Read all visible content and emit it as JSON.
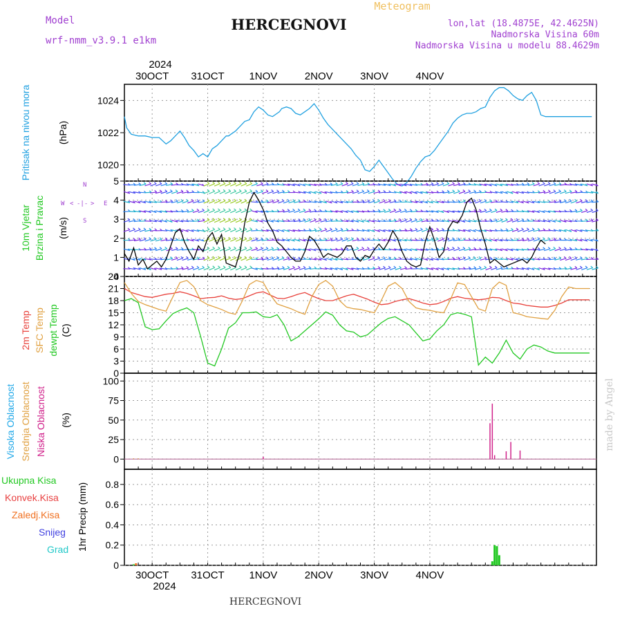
{
  "header": {
    "model_label": "Model",
    "model_name": "wrf-nmm_v3.9.1  e1km",
    "meteogram_label": "Meteogram",
    "station": "HERCEGNOVI",
    "lonlat": "lon,lat (18.4875E, 42.4625N)",
    "altitude": "Nadmorska Visina 60m",
    "model_altitude": "Nadmorska Visina u modelu 88.4629m"
  },
  "footer": {
    "station": "HERCEGNOVI",
    "watermark": "made by Angel"
  },
  "time_axis": {
    "year": "2024",
    "days": [
      "30OCT",
      "31OCT",
      "1NOV",
      "2NOV",
      "3NOV",
      "4NOV"
    ]
  },
  "colors": {
    "pressure": "#1fa0e0",
    "t2m": "#e8403a",
    "sfc": "#e0a040",
    "dew": "#22c822",
    "cloud_high": "#20a8e8",
    "cloud_mid": "#e0a040",
    "cloud_low": "#d0208a",
    "total_precip": "#22c822",
    "conv_precip": "#e84040",
    "frozen_precip": "#f07020",
    "snow": "#4040e0",
    "grad": "#20c8c8",
    "wind_speed": "#000000",
    "wind_arrows": "#7a2ce0"
  },
  "panels": {
    "pressure": {
      "label": "Pritisak na nivou mora",
      "unit": "(hPa)",
      "ticks": [
        "1020",
        "1022",
        "1024"
      ]
    },
    "wind": {
      "label_1": "10m Vjetar",
      "label_2": "Brzina i Pravac",
      "unit": "(m/s)",
      "ticks": [
        "0",
        "1",
        "2",
        "3",
        "4",
        "5"
      ],
      "compass": {
        "w": "W",
        "e": "E",
        "n": "N",
        "s": "S",
        "left": "<",
        "right": ">",
        "center": "-|-"
      }
    },
    "temp": {
      "label_t2m": "2m Temp",
      "label_sfc": "SFC Temp",
      "label_dew": "dewpt Temp",
      "unit": "(C)",
      "ticks": [
        "0",
        "3",
        "6",
        "9",
        "12",
        "15",
        "18",
        "21",
        "24"
      ]
    },
    "cloud": {
      "label_high": "Visoka Oblacnost",
      "label_mid": "Srednja Oblacnost",
      "label_low": "Niska Oblacnost",
      "unit": "(%)",
      "ticks": [
        "0",
        "25",
        "50",
        "75",
        "100"
      ]
    },
    "precip": {
      "label_total": "Ukupna Kisa",
      "label_conv": "Konvek.Kisa",
      "label_frozen": "Zaledj.Kisa",
      "label_snow": "Snijeg",
      "label_grad": "Grad",
      "unit": "1hr Precip (mm)",
      "ticks": [
        "0",
        "0.2",
        "0.4",
        "0.6",
        "0.8"
      ]
    }
  },
  "chart_data": [
    {
      "type": "line",
      "title": "",
      "ylabel": "Pritisak na nivou mora (hPa)",
      "ylim": [
        1019,
        1025
      ],
      "x_unit": "hours from 29 Oct 2024 12 UTC",
      "series": [
        {
          "name": "Pritisak na nivou mora",
          "x": [
            0,
            1,
            3,
            6,
            9,
            12,
            15,
            18,
            20,
            22,
            24,
            26,
            28,
            30,
            32,
            34,
            36,
            38,
            40,
            42,
            44,
            45,
            46,
            48,
            50,
            52,
            54,
            56,
            58,
            60,
            62,
            64,
            66,
            67,
            68,
            70,
            72,
            74,
            76,
            78,
            80,
            82,
            84,
            86,
            88,
            90,
            92,
            94,
            96,
            98,
            100,
            102,
            104,
            106,
            108,
            110,
            112,
            114,
            116,
            118,
            120,
            122,
            124,
            126,
            128,
            130,
            132,
            134,
            136,
            138,
            140,
            142,
            144,
            146,
            148,
            150,
            152,
            154,
            156,
            158,
            160,
            162,
            164,
            166,
            168,
            170,
            172,
            174,
            176,
            178,
            180,
            182,
            184,
            186,
            188,
            190,
            192,
            194,
            196,
            198,
            200,
            202
          ],
          "y": [
            1023.0,
            1022.3,
            1021.9,
            1021.8,
            1021.8,
            1021.7,
            1021.7,
            1021.3,
            1021.5,
            1021.8,
            1022.1,
            1021.7,
            1021.2,
            1020.9,
            1020.5,
            1020.7,
            1020.5,
            1021.0,
            1021.2,
            1021.5,
            1021.8,
            1021.8,
            1021.9,
            1022.1,
            1022.4,
            1022.7,
            1022.8,
            1023.3,
            1023.6,
            1023.4,
            1023.1,
            1023.0,
            1023.2,
            1023.3,
            1023.5,
            1023.6,
            1023.5,
            1023.2,
            1023.1,
            1023.3,
            1023.5,
            1023.8,
            1023.4,
            1022.9,
            1022.5,
            1022.2,
            1021.9,
            1021.6,
            1021.3,
            1021.0,
            1020.6,
            1020.3,
            1019.7,
            1019.6,
            1019.9,
            1020.3,
            1019.9,
            1019.5,
            1019.1,
            1018.8,
            1018.7,
            1018.9,
            1019.3,
            1019.8,
            1020.2,
            1020.5,
            1020.6,
            1020.9,
            1021.3,
            1021.7,
            1022.1,
            1022.6,
            1022.9,
            1023.1,
            1023.2,
            1023.2,
            1023.3,
            1023.5,
            1023.6,
            1024.2,
            1024.6,
            1024.8,
            1024.8,
            1024.6,
            1024.3,
            1024.1,
            1024.0,
            1024.3,
            1024.5,
            1024.0,
            1023.1,
            1023.0,
            1023.0,
            1023.0,
            1023.0,
            1023.0,
            1023.0,
            1023.0,
            1023.0,
            1023.0,
            1023.0,
            1023.0
          ]
        }
      ]
    },
    {
      "type": "line",
      "title": "",
      "ylabel": "10m Vjetar Brzina i Pravac (m/s)",
      "ylim": [
        0,
        5
      ],
      "x_unit": "hours from 29 Oct 2024 12 UTC",
      "series": [
        {
          "name": "Brzina",
          "x": [
            0,
            2,
            4,
            6,
            8,
            10,
            12,
            14,
            16,
            18,
            20,
            22,
            24,
            26,
            28,
            30,
            32,
            34,
            36,
            38,
            40,
            42,
            44,
            46,
            48,
            50,
            52,
            54,
            56,
            58,
            60,
            62,
            64,
            66,
            68,
            70,
            72,
            74,
            76,
            78,
            80,
            82,
            84,
            86,
            88,
            90,
            92,
            94,
            96,
            98,
            100,
            102,
            104,
            106,
            108,
            110,
            112,
            114,
            116,
            118,
            120,
            122,
            124,
            126,
            128,
            130,
            132,
            134,
            136,
            138,
            140,
            142,
            144,
            146,
            148,
            150,
            152,
            154,
            156,
            158,
            160,
            162,
            164,
            166,
            168,
            170,
            172,
            174,
            176,
            178,
            180,
            182
          ],
          "y": [
            1.2,
            0.8,
            1.5,
            0.6,
            0.9,
            0.4,
            0.6,
            0.8,
            0.5,
            0.9,
            1.6,
            2.3,
            2.5,
            1.8,
            1.3,
            0.9,
            1.6,
            1.3,
            2.0,
            2.3,
            1.7,
            2.2,
            0.7,
            0.6,
            0.5,
            1.3,
            2.8,
            3.9,
            4.4,
            4.0,
            3.5,
            2.8,
            2.4,
            1.8,
            1.6,
            1.3,
            1.0,
            0.8,
            0.8,
            1.3,
            2.1,
            1.9,
            1.5,
            1.0,
            1.2,
            1.1,
            1.0,
            1.2,
            1.6,
            1.6,
            1.0,
            0.8,
            1.1,
            1.0,
            1.4,
            1.7,
            1.4,
            1.8,
            2.4,
            2.0,
            1.3,
            0.8,
            0.6,
            0.5,
            0.6,
            1.8,
            2.6,
            1.9,
            1.0,
            1.3,
            2.5,
            2.9,
            2.8,
            3.2,
            3.9,
            4.1,
            3.5,
            2.5,
            1.7,
            0.7,
            0.9,
            0.7,
            0.5,
            0.6,
            0.7,
            0.8,
            0.9,
            0.7,
            1.0,
            1.5,
            1.9,
            1.7
          ]
        }
      ]
    },
    {
      "type": "line",
      "title": "",
      "ylabel": "Temp (C)",
      "ylim": [
        0,
        24
      ],
      "x_unit": "hours from 29 Oct 2024 12 UTC",
      "series": [
        {
          "name": "2m Temp",
          "x": [
            0,
            3,
            6,
            9,
            12,
            15,
            18,
            21,
            24,
            27,
            30,
            33,
            36,
            39,
            42,
            45,
            48,
            51,
            54,
            57,
            60,
            63,
            66,
            69,
            72,
            75,
            78,
            81,
            84,
            87,
            90,
            93,
            96,
            99,
            102,
            105,
            108,
            111,
            114,
            117,
            120,
            123,
            126,
            129,
            132,
            135,
            138,
            141,
            144,
            147,
            150,
            153,
            156,
            159,
            162,
            165,
            168,
            171,
            174,
            177,
            180,
            183,
            186,
            189,
            192,
            195,
            198,
            201
          ],
          "y": [
            21.0,
            20.0,
            19.5,
            19.0,
            18.8,
            19.2,
            19.6,
            19.8,
            20.2,
            19.8,
            19.2,
            18.5,
            18.7,
            18.8,
            19.2,
            18.6,
            18.3,
            18.5,
            19.2,
            19.9,
            20.2,
            19.4,
            18.6,
            18.5,
            19.0,
            19.6,
            20.0,
            19.2,
            18.5,
            18.0,
            18.0,
            18.6,
            19.2,
            19.6,
            19.0,
            18.4,
            17.6,
            17.0,
            17.2,
            17.8,
            18.2,
            18.5,
            18.0,
            17.4,
            17.0,
            17.2,
            17.8,
            18.6,
            19.0,
            18.6,
            18.4,
            18.2,
            18.4,
            18.8,
            18.7,
            18.0,
            17.4,
            17.2,
            16.8,
            16.6,
            16.4,
            16.4,
            16.8,
            17.4,
            18.2,
            18.2,
            18.2,
            18.2
          ]
        },
        {
          "name": "SFC Temp",
          "x": [
            0,
            3,
            6,
            9,
            12,
            15,
            18,
            21,
            24,
            27,
            30,
            33,
            36,
            39,
            42,
            45,
            48,
            51,
            54,
            57,
            60,
            63,
            66,
            69,
            72,
            75,
            78,
            81,
            84,
            87,
            90,
            93,
            96,
            99,
            102,
            105,
            108,
            111,
            114,
            117,
            120,
            123,
            126,
            129,
            132,
            135,
            138,
            141,
            144,
            147,
            150,
            153,
            156,
            159,
            162,
            165,
            168,
            171,
            174,
            177,
            180,
            183,
            186,
            189,
            192,
            195,
            198,
            201
          ],
          "y": [
            22.5,
            19.8,
            17.8,
            17.0,
            16.4,
            15.8,
            15.4,
            19.0,
            22.5,
            23.0,
            21.5,
            18.0,
            17.0,
            16.4,
            15.8,
            15.0,
            14.6,
            18.0,
            22.0,
            23.0,
            22.5,
            19.5,
            17.2,
            16.6,
            16.0,
            15.2,
            14.6,
            19.0,
            22.0,
            23.0,
            21.6,
            18.0,
            16.4,
            16.0,
            15.8,
            15.4,
            15.0,
            18.0,
            21.6,
            22.5,
            21.0,
            17.8,
            16.2,
            15.8,
            15.6,
            15.2,
            15.0,
            18.4,
            22.4,
            22.0,
            19.0,
            16.0,
            15.4,
            21.0,
            22.6,
            21.8,
            15.0,
            14.6,
            14.0,
            13.8,
            13.6,
            13.4,
            15.6,
            19.0,
            21.4,
            21.0,
            21.0,
            21.0
          ]
        },
        {
          "name": "dewpt Temp",
          "x": [
            0,
            3,
            6,
            9,
            12,
            15,
            18,
            21,
            24,
            27,
            30,
            33,
            36,
            39,
            42,
            45,
            48,
            51,
            54,
            57,
            60,
            63,
            66,
            69,
            72,
            75,
            78,
            81,
            84,
            87,
            90,
            93,
            96,
            99,
            102,
            105,
            108,
            111,
            114,
            117,
            120,
            123,
            126,
            129,
            132,
            135,
            138,
            141,
            144,
            147,
            150,
            153,
            156,
            159,
            162,
            165,
            168,
            171,
            174,
            177,
            180,
            183,
            186,
            189,
            192,
            195,
            198,
            201
          ],
          "y": [
            18.0,
            18.5,
            17.5,
            11.5,
            10.8,
            11.0,
            13.0,
            14.8,
            15.6,
            16.2,
            15.0,
            9.0,
            2.5,
            1.8,
            6.0,
            11.2,
            12.5,
            15.0,
            15.0,
            15.2,
            14.0,
            13.8,
            14.5,
            12.0,
            8.0,
            9.0,
            10.5,
            12.0,
            13.5,
            15.2,
            14.4,
            12.0,
            10.5,
            10.2,
            9.0,
            9.5,
            11.0,
            12.5,
            13.6,
            14.0,
            13.0,
            12.0,
            10.0,
            8.0,
            8.5,
            10.5,
            12.0,
            14.5,
            15.0,
            14.6,
            14.0,
            2.0,
            4.0,
            2.5,
            5.0,
            8.2,
            5.0,
            3.5,
            6.0,
            7.0,
            6.5,
            5.5,
            5.0,
            5.0,
            5.0,
            5.0,
            5.0,
            5.0
          ]
        }
      ]
    },
    {
      "type": "bar",
      "title": "",
      "ylabel": "Oblacnost (%)",
      "ylim": [
        0,
        100
      ],
      "x_unit": "hours from 29 Oct 2024 12 UTC",
      "series": [
        {
          "name": "Niska Oblacnost",
          "x": [
            60,
            158,
            159,
            160,
            165,
            167,
            171
          ],
          "values": [
            3,
            46,
            71,
            5,
            10,
            22,
            11
          ]
        },
        {
          "name": "Srednja Oblacnost",
          "x": [
            4,
            6
          ],
          "values": [
            1,
            1
          ]
        }
      ]
    },
    {
      "type": "bar",
      "title": "",
      "ylabel": "1hr Precip (mm)",
      "ylim": [
        0,
        0.95
      ],
      "x_unit": "hours from 29 Oct 2024 12 UTC",
      "series": [
        {
          "name": "Ukupna Kisa",
          "x": [
            4,
            159,
            160,
            161,
            162
          ],
          "values": [
            0.01,
            0.04,
            0.2,
            0.19,
            0.1
          ]
        },
        {
          "name": "Zaledj.Kisa",
          "x": [
            5
          ],
          "values": [
            0.02
          ]
        }
      ]
    }
  ]
}
